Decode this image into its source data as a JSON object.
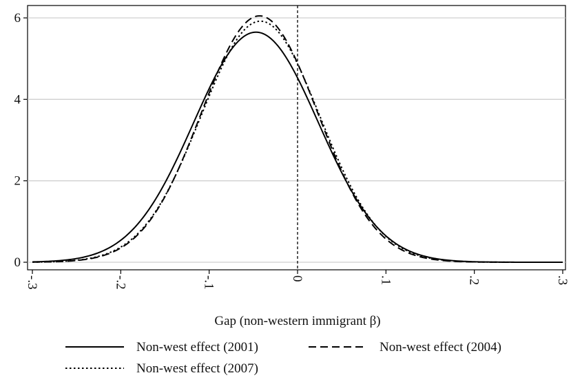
{
  "chart_data": {
    "type": "line",
    "xlabel": "Gap (non-western immigrant  β)",
    "ylabel": "",
    "xlim": [
      -0.3,
      0.3
    ],
    "ylim": [
      -0.2,
      6.3
    ],
    "x_ticks": [
      -0.3,
      -0.2,
      -0.1,
      0,
      0.1,
      0.2,
      0.3
    ],
    "x_tick_labels": [
      "-.3",
      "-.2",
      "-.1",
      "0",
      ".1",
      ".2",
      ".3"
    ],
    "y_ticks": [
      0,
      2,
      4,
      6
    ],
    "y_tick_labels": [
      "0",
      "2",
      "4",
      "6"
    ],
    "grid": "horizontal",
    "reference_line_x": 0,
    "legend_position": "bottom",
    "series": [
      {
        "name": "Non-west effect (2001)",
        "style": "solid",
        "color": "#000000",
        "mean": -0.047,
        "sd": 0.0706,
        "peak": 5.65
      },
      {
        "name": "Non-west effect (2004)",
        "style": "dashed",
        "color": "#000000",
        "mean": -0.043,
        "sd": 0.0658,
        "peak": 6.05
      },
      {
        "name": "Non-west effect (2007)",
        "style": "dotted",
        "color": "#000000",
        "mean": -0.042,
        "sd": 0.0672,
        "peak": 5.92
      }
    ]
  }
}
